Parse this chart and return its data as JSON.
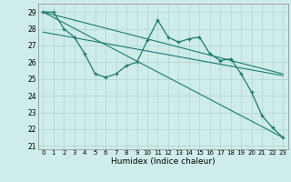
{
  "title": "",
  "xlabel": "Humidex (Indice chaleur)",
  "background_color": "#ceecea",
  "grid_color": "#aed4d0",
  "line_color": "#1a7a6e",
  "xlim": [
    -0.5,
    23.5
  ],
  "ylim": [
    20.8,
    29.5
  ],
  "yticks": [
    21,
    22,
    23,
    24,
    25,
    26,
    27,
    28,
    29
  ],
  "xticks": [
    0,
    1,
    2,
    3,
    4,
    5,
    6,
    7,
    8,
    9,
    10,
    11,
    12,
    13,
    14,
    15,
    16,
    17,
    18,
    19,
    20,
    21,
    22,
    23
  ],
  "series1_x": [
    0,
    1,
    2,
    3,
    4,
    5,
    6,
    7,
    8,
    9,
    10,
    11,
    12,
    13,
    14,
    15,
    16,
    17,
    18,
    19,
    20,
    21,
    22,
    23
  ],
  "series1_y": [
    29.0,
    29.0,
    28.0,
    27.5,
    26.5,
    25.3,
    25.1,
    25.3,
    25.8,
    26.0,
    27.3,
    28.5,
    27.5,
    27.2,
    27.4,
    27.5,
    26.5,
    26.1,
    26.2,
    25.3,
    24.2,
    22.8,
    22.1,
    21.5
  ],
  "line2_x": [
    0,
    23
  ],
  "line2_y": [
    29.0,
    25.3
  ],
  "line3_x": [
    0,
    23
  ],
  "line3_y": [
    29.0,
    21.5
  ],
  "line4_x": [
    0,
    23
  ],
  "line4_y": [
    27.8,
    25.2
  ]
}
